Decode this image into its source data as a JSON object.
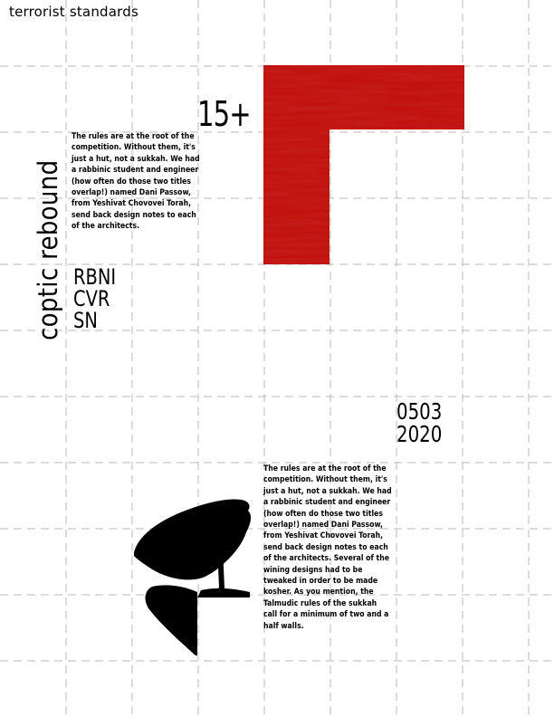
{
  "header": {
    "title": "terrorist standards"
  },
  "badge": {
    "count": "15+"
  },
  "side": {
    "vertical_title": "coptic rebound"
  },
  "paragraph_top": "The rules are at the root of the competition. Without them, it's just a hut, not a sukkah. We had a rabbinic student and engineer (how often do those two titles overlap!) named Dani Passow, from Yeshivat Chovovei Torah, send back design notes to each of the architects.",
  "codes": [
    "RBNI",
    "CVR",
    "SN"
  ],
  "date": {
    "line1": "0503",
    "line2": "2020"
  },
  "paragraph_bottom": "The rules are at the root of the competition. Without them, it's just a hut, not a sukkah. We had a rabbinic student and engineer (how often do those two titles overlap!) named Dani Passow, from Yeshivat Chovovei Torah, send back design notes to each of the architects. Several of the wining designs had to be tweaked in order to be made kosher. As you mention, the Talmudic rules of the sukkah call for a minimum of two and a half walls.",
  "colors": {
    "accent": "#b5100c",
    "grid": "#b8b8b8",
    "ink": "#000000"
  },
  "images": {
    "top": "red-texture-block",
    "bottom": "tree-silhouette"
  }
}
